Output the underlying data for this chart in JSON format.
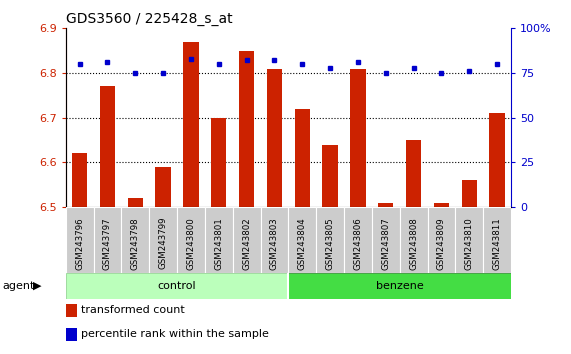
{
  "title": "GDS3560 / 225428_s_at",
  "samples": [
    "GSM243796",
    "GSM243797",
    "GSM243798",
    "GSM243799",
    "GSM243800",
    "GSM243801",
    "GSM243802",
    "GSM243803",
    "GSM243804",
    "GSM243805",
    "GSM243806",
    "GSM243807",
    "GSM243808",
    "GSM243809",
    "GSM243810",
    "GSM243811"
  ],
  "bar_values": [
    6.62,
    6.77,
    6.52,
    6.59,
    6.87,
    6.7,
    6.85,
    6.81,
    6.72,
    6.64,
    6.81,
    6.51,
    6.65,
    6.51,
    6.56,
    6.71
  ],
  "dot_values": [
    80,
    81,
    75,
    75,
    83,
    80,
    82,
    82,
    80,
    78,
    81,
    75,
    78,
    75,
    76,
    80
  ],
  "bar_color": "#cc2200",
  "dot_color": "#0000cc",
  "ylim_left": [
    6.5,
    6.9
  ],
  "ylim_right": [
    0,
    100
  ],
  "yticks_left": [
    6.5,
    6.6,
    6.7,
    6.8,
    6.9
  ],
  "yticks_right": [
    0,
    25,
    50,
    75,
    100
  ],
  "ytick_labels_right": [
    "0",
    "25",
    "50",
    "75",
    "100%"
  ],
  "grid_values": [
    6.6,
    6.7,
    6.8
  ],
  "ctrl_count": 8,
  "benz_count": 8,
  "control_color": "#bbffbb",
  "benzene_color": "#44dd44",
  "agent_label": "agent",
  "legend_bar_label": "transformed count",
  "legend_dot_label": "percentile rank within the sample",
  "bar_width": 0.55,
  "base_value": 6.5
}
